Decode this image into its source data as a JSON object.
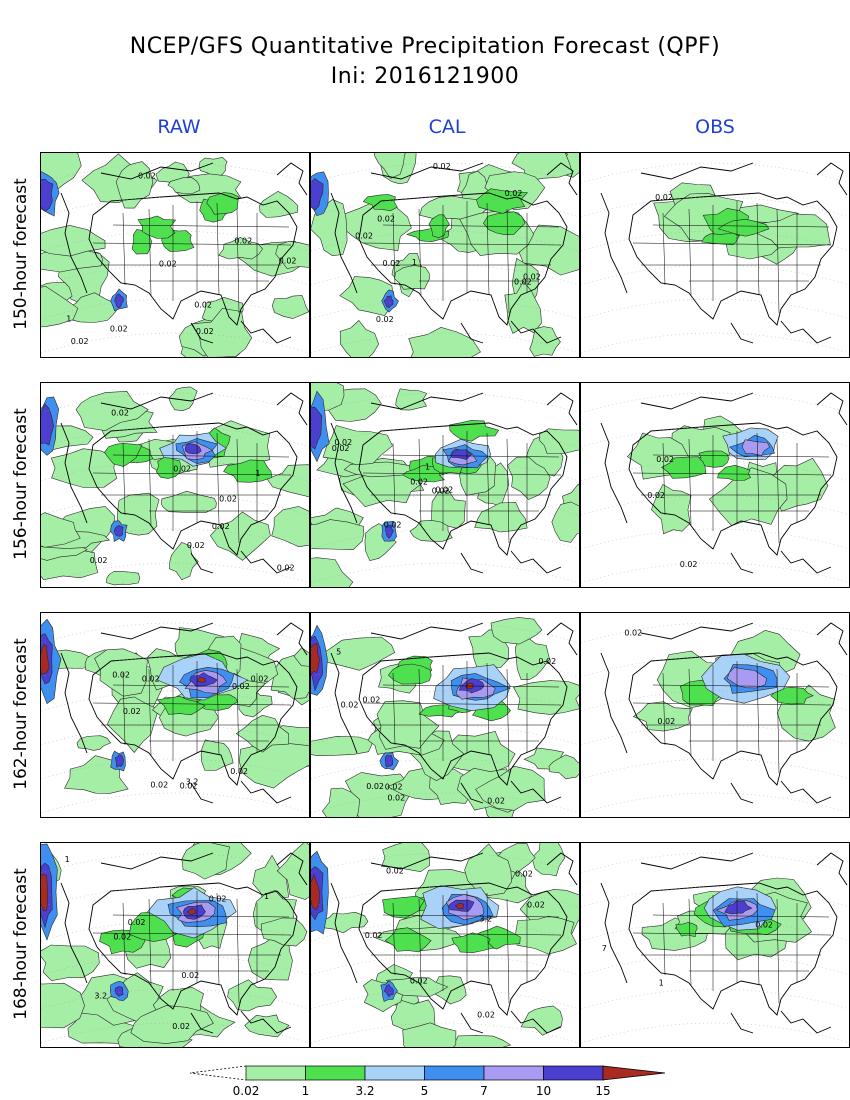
{
  "title": {
    "line1": "NCEP/GFS Quantitative Precipitation Forecast (QPF)",
    "line2": "Ini: 2016121900"
  },
  "columns": [
    "RAW",
    "CAL",
    "OBS"
  ],
  "rows": [
    "150-hour forecast",
    "156-hour forecast",
    "162-hour forecast",
    "168-hour forecast"
  ],
  "colors": {
    "header_blue": "#1f3fd6",
    "levels": [
      "#a5eea5",
      "#4fe04f",
      "#a9d2f8",
      "#3f8ff0",
      "#a99bf2",
      "#4b3fd0",
      "#a82a20"
    ]
  },
  "legend": {
    "thresholds": [
      "0.02",
      "1",
      "3.2",
      "5",
      "7",
      "10",
      "15"
    ]
  },
  "contour_labels": {
    "r0": {
      "RAW": [
        "0.02",
        "0.02",
        "1",
        "0.02",
        "0.02",
        "0.02",
        "0.02",
        "0.02",
        "0.02"
      ],
      "CAL": [
        "0.02",
        "0.02",
        "1",
        "0.02",
        "0.02",
        "0.02",
        "0.02",
        "0.02",
        "0.02"
      ],
      "OBS": [
        "0.02"
      ]
    },
    "r1": {
      "RAW": [
        "0.02",
        "0.02",
        "0.02",
        "0.02",
        "0.02",
        "1",
        "0.02",
        "0.02"
      ],
      "CAL": [
        "0.02",
        "0.02",
        "0.02",
        "0.02",
        "1",
        "0.02",
        "0.02"
      ],
      "OBS": [
        "0.02",
        "0.02",
        "0.02"
      ]
    },
    "r2": {
      "RAW": [
        "0.02",
        "0.02",
        "0.02",
        "3.2",
        "0.02",
        "0.02",
        "0.02",
        "0.02",
        "0.02"
      ],
      "CAL": [
        "0.02",
        "0.02",
        "0.02",
        "0.02",
        "5",
        "0.02",
        "0.02",
        "0.02"
      ],
      "OBS": [
        "0.02",
        "0.02"
      ]
    },
    "r3": {
      "RAW": [
        "0.02",
        "0.02",
        "1",
        "3.2",
        "1",
        "0.02",
        "0.02",
        "0.02"
      ],
      "CAL": [
        "0.02",
        "0.02",
        "0.02",
        "3.2",
        "0.02",
        "0.02",
        "0.02"
      ],
      "OBS": [
        "1",
        "7",
        "0.02"
      ]
    }
  }
}
